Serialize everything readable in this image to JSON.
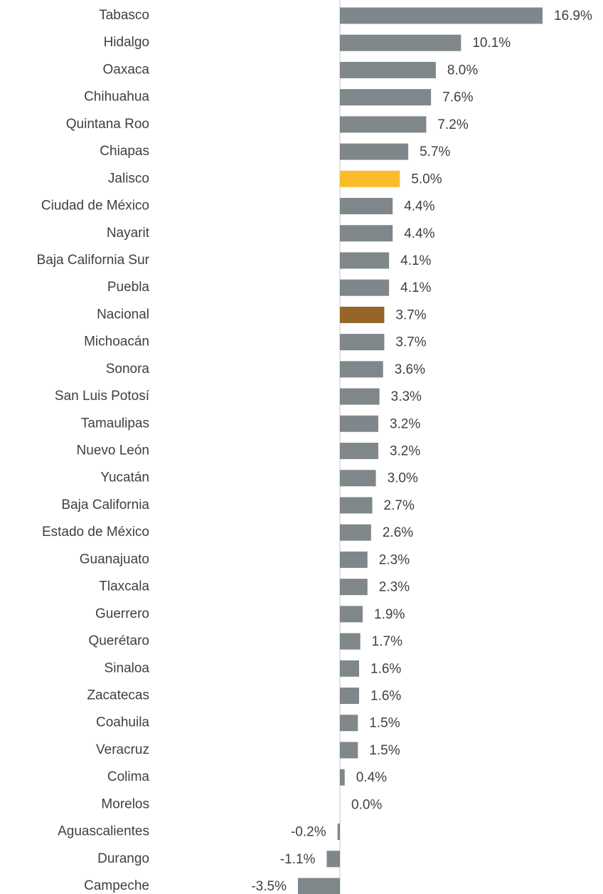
{
  "chart_data": {
    "type": "hbar",
    "categories": [
      "Tabasco",
      "Hidalgo",
      "Oaxaca",
      "Chihuahua",
      "Quintana Roo",
      "Chiapas",
      "Jalisco",
      "Ciudad de México",
      "Nayarit",
      "Baja California Sur",
      "Puebla",
      "Nacional",
      "Michoacán",
      "Sonora",
      "San Luis Potosí",
      "Tamaulipas",
      "Nuevo León",
      "Yucatán",
      "Baja California",
      "Estado de México",
      "Guanajuato",
      "Tlaxcala",
      "Guerrero",
      "Querétaro",
      "Sinaloa",
      "Zacatecas",
      "Coahuila",
      "Veracruz",
      "Colima",
      "Morelos",
      "Aguascalientes",
      "Durango",
      "Campeche"
    ],
    "values": [
      16.9,
      10.1,
      8.0,
      7.6,
      7.2,
      5.7,
      5.0,
      4.4,
      4.4,
      4.1,
      4.1,
      3.7,
      3.7,
      3.6,
      3.3,
      3.2,
      3.2,
      3.0,
      2.7,
      2.6,
      2.3,
      2.3,
      1.9,
      1.7,
      1.6,
      1.6,
      1.5,
      1.5,
      0.4,
      0.0,
      -0.2,
      -1.1,
      -3.5
    ],
    "value_labels": [
      "16.9%",
      "10.1%",
      "8.0%",
      "7.6%",
      "7.2%",
      "5.7%",
      "5.0%",
      "4.4%",
      "4.4%",
      "4.1%",
      "4.1%",
      "3.7%",
      "3.7%",
      "3.6%",
      "3.3%",
      "3.2%",
      "3.2%",
      "3.0%",
      "2.7%",
      "2.6%",
      "2.3%",
      "2.3%",
      "1.9%",
      "1.7%",
      "1.6%",
      "1.6%",
      "1.5%",
      "1.5%",
      "0.4%",
      "0.0%",
      "-0.2%",
      "-1.1%",
      "-3.5%"
    ],
    "colors": [
      "#7f878b",
      "#7f878b",
      "#7f878b",
      "#7f878b",
      "#7f878b",
      "#7f878b",
      "#fbbc2b",
      "#7f878b",
      "#7f878b",
      "#7f878b",
      "#7f878b",
      "#95652a",
      "#7f878b",
      "#7f878b",
      "#7f878b",
      "#7f878b",
      "#7f878b",
      "#7f878b",
      "#7f878b",
      "#7f878b",
      "#7f878b",
      "#7f878b",
      "#7f878b",
      "#7f878b",
      "#7f878b",
      "#7f878b",
      "#7f878b",
      "#7f878b",
      "#7f878b",
      "#7f878b",
      "#7f878b",
      "#7f878b",
      "#7f878b"
    ]
  }
}
